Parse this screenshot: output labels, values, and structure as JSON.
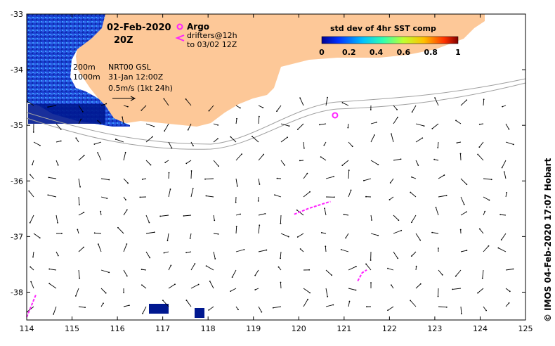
{
  "title": {
    "date": "02-Feb-2020",
    "time": "20Z"
  },
  "legend": {
    "argo_label": "Argo",
    "drifters_label": "drifters@12h",
    "drifters_to": "to 03/02 12Z",
    "depth_200": "200m",
    "depth_1000": "1000m",
    "product": "NRT00 GSL",
    "product_time": "31-Jan 12:00Z",
    "scale": "0.5m/s (1kt 24h)"
  },
  "colorbar": {
    "title": "std dev of 4hr SST comp",
    "ticks": [
      "0",
      "0.2",
      "0.4",
      "0.6",
      "0.8",
      "1"
    ],
    "range": [
      0,
      1
    ]
  },
  "axes": {
    "x_ticks": [
      "114",
      "115",
      "116",
      "117",
      "118",
      "119",
      "120",
      "121",
      "122",
      "123",
      "124",
      "125"
    ],
    "y_ticks": [
      "-33",
      "-34",
      "-35",
      "-36",
      "-37",
      "-38"
    ],
    "x_range": [
      114,
      125
    ],
    "y_range": [
      -38.5,
      -33
    ]
  },
  "credit": "© IMOS 04-Feb-2020 17:07 Hobart",
  "colors": {
    "land": "#fdc898",
    "sst": "#1238c8",
    "magenta": "#ff22ff",
    "isobath": "#a0a0a0"
  },
  "argo_float": {
    "lon": 120.8,
    "lat": -34.82
  },
  "drifters": [
    [
      [
        119.9,
        -36.6
      ],
      [
        120.2,
        -36.5
      ],
      [
        120.5,
        -36.42
      ],
      [
        120.7,
        -36.37
      ]
    ],
    [
      [
        121.3,
        -37.8
      ],
      [
        121.4,
        -37.65
      ],
      [
        121.5,
        -37.6
      ]
    ],
    [
      [
        114.0,
        -38.45
      ],
      [
        114.1,
        -38.25
      ],
      [
        114.2,
        -38.05
      ]
    ]
  ]
}
